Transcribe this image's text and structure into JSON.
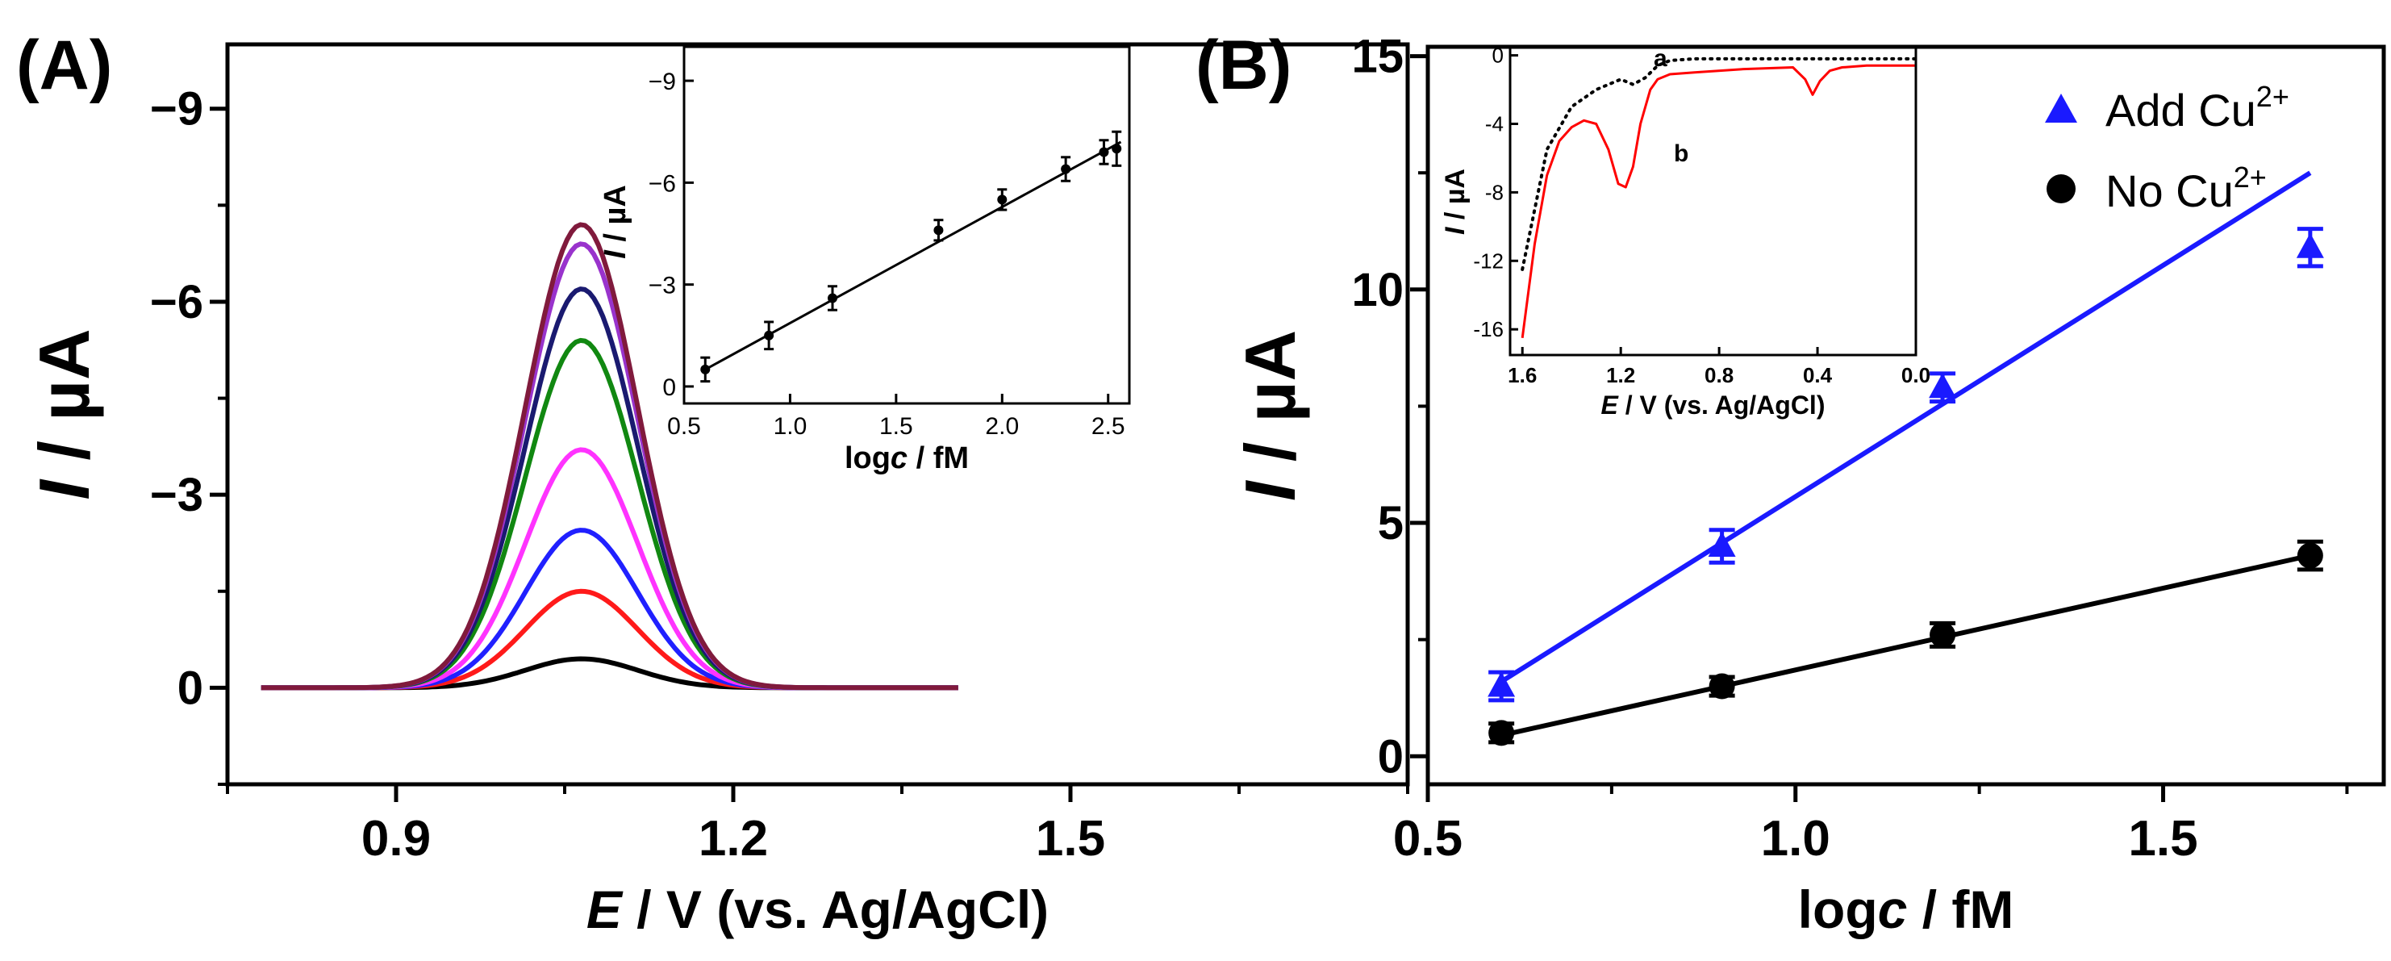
{
  "panel_a": {
    "label": "(A)",
    "x_axis": {
      "var": "E",
      "unit_text": " / V (vs. Ag/AgCl)",
      "ticks": [
        "0.9",
        "1.2",
        "1.5"
      ],
      "tick_values": [
        0.9,
        1.2,
        1.5
      ]
    },
    "y_axis": {
      "var": "I",
      "unit_text": " / µA",
      "ticks": [
        "−9",
        "−6",
        "−3",
        "0"
      ],
      "tick_values": [
        -9,
        -6,
        -3,
        0
      ]
    },
    "inset": {
      "x_axis": {
        "text": "logc / fM",
        "ticks": [
          "0.5",
          "1.0",
          "1.5",
          "2.0",
          "2.5"
        ],
        "tick_values": [
          0.5,
          1.0,
          1.5,
          2.0,
          2.5
        ]
      },
      "y_axis": {
        "var": "I",
        "unit_text": " / µA",
        "ticks": [
          "−9",
          "−6",
          "−3",
          "0"
        ],
        "tick_values": [
          -9,
          -6,
          -3,
          0
        ]
      }
    }
  },
  "panel_b": {
    "label": "(B)",
    "x_axis": {
      "text": "logc / fM",
      "ticks": [
        "0.5",
        "1.0",
        "1.5"
      ],
      "tick_values": [
        0.5,
        1.0,
        1.5
      ]
    },
    "y_axis": {
      "var": "I",
      "unit_text": " / µA",
      "ticks": [
        "0",
        "5",
        "10",
        "15"
      ],
      "tick_values": [
        0,
        5,
        10,
        15
      ]
    },
    "legend": [
      {
        "label": "Add Cu",
        "sup": "2+",
        "color": "#1a1aff",
        "marker": "triangle"
      },
      {
        "label": "No Cu",
        "sup": "2+",
        "color": "#000000",
        "marker": "circle"
      }
    ],
    "inset": {
      "x_axis": {
        "var": "E",
        "unit_text": " / V (vs. Ag/AgCl)",
        "ticks": [
          "1.6",
          "1.2",
          "0.8",
          "0.4",
          "0.0"
        ],
        "tick_values": [
          1.6,
          1.2,
          0.8,
          0.4,
          0.0
        ]
      },
      "y_axis": {
        "var": "I",
        "unit_text": " / µA",
        "ticks": [
          "0",
          "-4",
          "-8",
          "-12",
          "-16"
        ],
        "tick_values": [
          0,
          -4,
          -8,
          -12,
          -16
        ]
      },
      "curve_labels": [
        "a",
        "b"
      ]
    }
  },
  "chart_data": [
    {
      "type": "line",
      "title": "(A)",
      "xlabel": "E / V (vs. Ag/AgCl)",
      "ylabel": "I / µA",
      "xlim": [
        0.75,
        1.8
      ],
      "ylim": [
        1.5,
        -10
      ],
      "y_inverted": true,
      "series_model": "gaussian peaks, center 1.065 V, width 0.05 V, from 0.78 to 1.40 V",
      "series": [
        {
          "name": "black",
          "color": "#000000",
          "peak": -0.45
        },
        {
          "name": "red",
          "color": "#ff1a1a",
          "peak": -1.5
        },
        {
          "name": "blue",
          "color": "#2020ff",
          "peak": -2.45
        },
        {
          "name": "magenta",
          "color": "#ff33ff",
          "peak": -3.7
        },
        {
          "name": "green",
          "color": "#118811",
          "peak": -5.4
        },
        {
          "name": "navy",
          "color": "#1a1a70",
          "peak": -6.2
        },
        {
          "name": "violet",
          "color": "#9933cc",
          "peak": -6.9
        },
        {
          "name": "maroon",
          "color": "#801a3c",
          "peak": -7.2
        }
      ]
    },
    {
      "type": "scatter",
      "title": "(A) inset",
      "xlabel": "logc / fM",
      "ylabel": "I / µA",
      "xlim": [
        0.5,
        2.6
      ],
      "ylim": [
        0.5,
        -10
      ],
      "y_inverted": true,
      "x": [
        0.6,
        0.9,
        1.2,
        1.7,
        2.0,
        2.3,
        2.48,
        2.54
      ],
      "y": [
        -0.5,
        -1.5,
        -2.6,
        -4.6,
        -5.5,
        -6.4,
        -6.9,
        -7.0
      ],
      "error": [
        0.35,
        0.4,
        0.35,
        0.3,
        0.3,
        0.35,
        0.35,
        0.5
      ],
      "fit": {
        "x": [
          0.6,
          2.56
        ],
        "y": [
          -0.5,
          -7.2
        ]
      }
    },
    {
      "type": "scatter",
      "title": "(B)",
      "xlabel": "logc / fM",
      "ylabel": "I / µA",
      "xlim": [
        0.5,
        1.8
      ],
      "ylim": [
        -0.6,
        15.2
      ],
      "series": [
        {
          "name": "Add Cu2+",
          "color": "#1a1aff",
          "marker": "triangle",
          "x": [
            0.6,
            0.9,
            1.2,
            1.7
          ],
          "y": [
            1.5,
            4.5,
            7.9,
            10.9
          ],
          "error": [
            0.3,
            0.35,
            0.3,
            0.4
          ],
          "fit": {
            "x": [
              0.6,
              1.7
            ],
            "y": [
              1.6,
              12.5
            ]
          }
        },
        {
          "name": "No Cu2+",
          "color": "#000000",
          "marker": "circle",
          "x": [
            0.6,
            0.9,
            1.2,
            1.7
          ],
          "y": [
            0.5,
            1.5,
            2.6,
            4.3
          ],
          "error": [
            0.2,
            0.2,
            0.25,
            0.3
          ],
          "fit": {
            "x": [
              0.6,
              1.7
            ],
            "y": [
              0.45,
              4.3
            ]
          }
        }
      ]
    },
    {
      "type": "line",
      "title": "(B) inset",
      "xlabel": "E / V (vs. Ag/AgCl)",
      "ylabel": "I / µA",
      "xlim": [
        1.65,
        0.0
      ],
      "ylim": [
        -17.5,
        0.5
      ],
      "series": [
        {
          "name": "a",
          "color": "#000000",
          "style": "dotted",
          "x": [
            1.6,
            1.5,
            1.4,
            1.3,
            1.2,
            1.15,
            1.1,
            1.05,
            1.0,
            0.9,
            0.7,
            0.5,
            0.3,
            0.0
          ],
          "y": [
            -12.5,
            -5.5,
            -3.0,
            -2.0,
            -1.4,
            -1.7,
            -1.3,
            -0.6,
            -0.3,
            -0.2,
            -0.2,
            -0.2,
            -0.2,
            -0.2
          ]
        },
        {
          "name": "b",
          "color": "#ff0000",
          "style": "solid",
          "x": [
            1.6,
            1.55,
            1.5,
            1.45,
            1.4,
            1.35,
            1.3,
            1.25,
            1.21,
            1.18,
            1.15,
            1.12,
            1.08,
            1.05,
            1.0,
            0.9,
            0.7,
            0.5,
            0.45,
            0.42,
            0.39,
            0.35,
            0.3,
            0.2,
            0.1,
            0.0
          ],
          "y": [
            -16.5,
            -11.0,
            -7.0,
            -5.0,
            -4.2,
            -3.8,
            -4.0,
            -5.5,
            -7.5,
            -7.7,
            -6.5,
            -4.0,
            -2.0,
            -1.4,
            -1.1,
            -1.0,
            -0.8,
            -0.7,
            -1.4,
            -2.3,
            -1.5,
            -0.9,
            -0.7,
            -0.6,
            -0.6,
            -0.6
          ]
        }
      ]
    }
  ]
}
